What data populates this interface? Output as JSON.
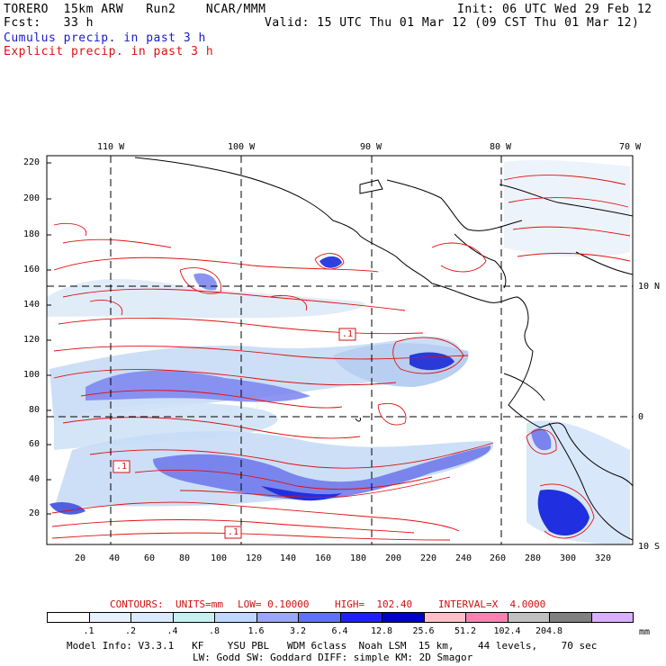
{
  "header": {
    "title": "TORERO  15km ARW   Run2    NCAR/MMM",
    "init": "Init: 06 UTC Wed 29 Feb 12",
    "fcst": "Fcst:   33 h",
    "valid": "Valid: 15 UTC Thu 01 Mar 12 (09 CST Thu 01 Mar 12)",
    "field_cumulus": "Cumulus precip. in past 3 h",
    "field_explicit": "Explicit precip. in past 3 h"
  },
  "axes": {
    "top_lon_labels": [
      "110 W",
      "100 W",
      "90 W",
      "80 W",
      "70 W"
    ],
    "right_lat_labels": [
      "10 N",
      "0",
      "10 S"
    ],
    "y_ticks": [
      "220",
      "200",
      "180",
      "160",
      "140",
      "120",
      "100",
      "80",
      "60",
      "40",
      "20"
    ],
    "x_ticks": [
      "20",
      "40",
      "60",
      "80",
      "100",
      "120",
      "140",
      "160",
      "180",
      "200",
      "220",
      "240",
      "260",
      "280",
      "300",
      "320"
    ],
    "box_labels": [
      ".1",
      ".1",
      ".1"
    ]
  },
  "contours_info": {
    "label": "CONTOURS:",
    "units": "UNITS=mm",
    "low": "LOW= 0.10000",
    "high": "HIGH=  102.40",
    "interval": "INTERVAL=X  4.0000"
  },
  "legend": {
    "labels": [
      ".1",
      ".2",
      ".4",
      ".8",
      "1.6",
      "3.2",
      "6.4",
      "12.8",
      "25.6",
      "51.2",
      "102.4",
      "204.8"
    ],
    "unit": "mm",
    "colors": [
      "#ffffff",
      "#e8f1ff",
      "#dbeaff",
      "#c9f0f0",
      "#c0d8ff",
      "#9aa6ff",
      "#6070ff",
      "#2020ff",
      "#0000c8",
      "#ffc0c8",
      "#ff80b0",
      "#c0c0c0",
      "#808080",
      "#d8b0ff"
    ]
  },
  "model_info": {
    "line1": "Model Info: V3.3.1   KF    YSU PBL   WDM 6class  Noah LSM  15 km,    44 levels,    70 sec",
    "line2": "LW: Godd SW: Goddard DIFF: simple KM: 2D Smagor"
  },
  "colors": {
    "cumulus_text": "#1a1acc",
    "explicit_text": "#e01010",
    "contour_red": "#e01010",
    "precip_light": "#c6dcf5",
    "precip_mid": "#7a84ee",
    "precip_heavy": "#2030e0"
  }
}
